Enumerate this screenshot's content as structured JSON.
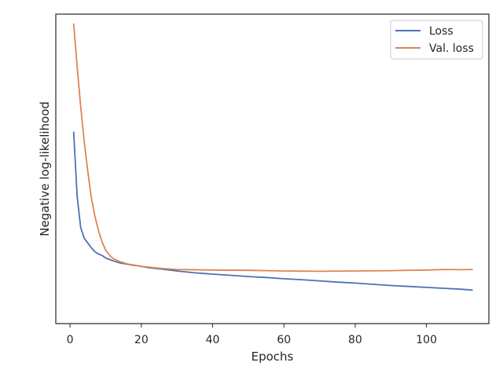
{
  "chart_data": {
    "type": "line",
    "title": "",
    "xlabel": "Epochs",
    "ylabel": "Negative log-likelihood",
    "xlim": [
      -4,
      117.5
    ],
    "ylim": [
      0,
      1
    ],
    "xticks": [
      0,
      20,
      40,
      60,
      80,
      100
    ],
    "yticks_visible": false,
    "grid": false,
    "legend": "top-right",
    "colors": {
      "Loss": "#4c72b0",
      "Val. loss": "#dd8452"
    },
    "series": [
      {
        "name": "Loss",
        "x": [
          1,
          2,
          3,
          4,
          5,
          6,
          7,
          8,
          9,
          10,
          12,
          14,
          16,
          18,
          20,
          22,
          24,
          26,
          28,
          30,
          35,
          40,
          45,
          50,
          55,
          60,
          65,
          70,
          75,
          80,
          85,
          90,
          95,
          100,
          105,
          110,
          113
        ],
        "y": [
          0.62,
          0.41,
          0.31,
          0.275,
          0.26,
          0.245,
          0.232,
          0.225,
          0.22,
          0.212,
          0.203,
          0.196,
          0.192,
          0.188,
          0.185,
          0.181,
          0.178,
          0.176,
          0.173,
          0.17,
          0.164,
          0.16,
          0.156,
          0.152,
          0.149,
          0.145,
          0.142,
          0.138,
          0.134,
          0.131,
          0.127,
          0.123,
          0.12,
          0.117,
          0.114,
          0.111,
          0.108
        ]
      },
      {
        "name": "Val. loss",
        "x": [
          1,
          2,
          3,
          4,
          5,
          6,
          7,
          8,
          9,
          10,
          11,
          12,
          14,
          16,
          18,
          20,
          25,
          30,
          40,
          50,
          60,
          70,
          80,
          90,
          100,
          105,
          110,
          113
        ],
        "y": [
          0.97,
          0.83,
          0.7,
          0.585,
          0.49,
          0.405,
          0.345,
          0.3,
          0.263,
          0.237,
          0.222,
          0.211,
          0.2,
          0.193,
          0.189,
          0.185,
          0.179,
          0.175,
          0.173,
          0.172,
          0.17,
          0.169,
          0.17,
          0.171,
          0.173,
          0.175,
          0.174,
          0.175
        ]
      }
    ]
  }
}
